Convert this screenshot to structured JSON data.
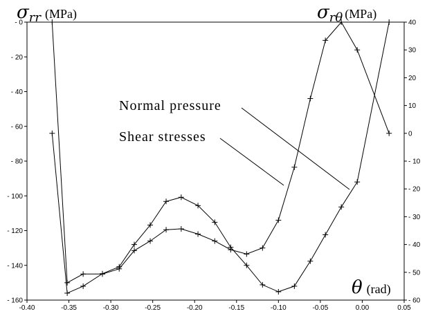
{
  "chart_data": {
    "type": "line",
    "x_axis": {
      "label": "(rad)",
      "symbol": "θ",
      "lim": [
        -0.4,
        0.05
      ],
      "ticks": [
        "-0.40",
        "-0.35",
        "-0.30",
        "-0.25",
        "-0.20",
        "-0.15",
        "-0.10",
        "-0.05",
        "0.00",
        "0.05"
      ],
      "tick_values": [
        -0.4,
        -0.35,
        -0.3,
        -0.25,
        -0.2,
        -0.15,
        -0.1,
        -0.05,
        0.0,
        0.05
      ]
    },
    "y_left": {
      "symbol": "σ",
      "subscript": "rr",
      "unit": "(MPa)",
      "lim": [
        -160,
        0
      ],
      "ticks": [
        "- 0",
        "- 20",
        "- 40",
        "- 60",
        "- 80",
        "- 100",
        "- 120",
        "- 140",
        "- 160"
      ],
      "tick_values": [
        0,
        -20,
        -40,
        -60,
        -80,
        -100,
        -120,
        -140,
        -160
      ]
    },
    "y_right": {
      "symbol": "σ",
      "subscript": "rθ",
      "unit": "(MPa)",
      "lim": [
        -60,
        40
      ],
      "ticks": [
        "40",
        "30",
        "20",
        "10",
        "0",
        "- 10",
        "- 20",
        "- 30",
        "- 40",
        "- 50",
        "- 60"
      ],
      "tick_values": [
        40,
        30,
        20,
        10,
        0,
        -10,
        -20,
        -30,
        -40,
        -50,
        -60
      ]
    },
    "series": [
      {
        "name": "Normal pressure",
        "axis": "left",
        "x": [
          -0.37,
          -0.352,
          -0.333,
          -0.31,
          -0.29,
          -0.272,
          -0.253,
          -0.234,
          -0.216,
          -0.196,
          -0.176,
          -0.157,
          -0.138,
          -0.119,
          -0.1,
          -0.081,
          -0.062,
          -0.044,
          -0.025,
          -0.006,
          0.032
        ],
        "y": [
          0.0,
          -150.0,
          -145.0,
          -145.0,
          -142.0,
          -131.5,
          -126.0,
          -119.5,
          -119.0,
          -122.0,
          -126.0,
          -131.0,
          -133.5,
          -130.0,
          -114.0,
          -83.5,
          -44.0,
          -10.5,
          0.0,
          -16.0,
          -64.0
        ]
      },
      {
        "name": "Shear stresses",
        "axis": "right",
        "x": [
          -0.37,
          -0.352,
          -0.333,
          -0.31,
          -0.29,
          -0.272,
          -0.253,
          -0.234,
          -0.216,
          -0.196,
          -0.176,
          -0.157,
          -0.138,
          -0.119,
          -0.1,
          -0.081,
          -0.062,
          -0.044,
          -0.025,
          -0.006,
          0.032
        ],
        "y": [
          0.0,
          -57.5,
          -55.0,
          -50.5,
          -48.0,
          -40.0,
          -33.0,
          -24.5,
          -23.0,
          -26.0,
          -32.0,
          -41.0,
          -47.5,
          -54.5,
          -57.0,
          -55.0,
          -46.0,
          -36.5,
          -26.5,
          -17.5,
          40.0
        ]
      }
    ],
    "annotations": [
      "Normal pressure",
      "Shear stresses"
    ],
    "grid": false,
    "marker": "+"
  }
}
